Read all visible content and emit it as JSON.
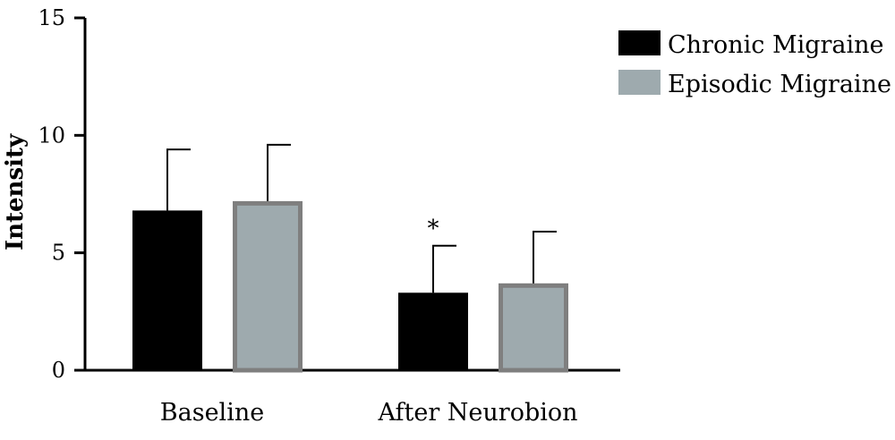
{
  "chart_data": {
    "type": "bar",
    "title": "",
    "xlabel": "",
    "ylabel": "Intensity",
    "ylim": [
      0,
      15
    ],
    "yticks": [
      0,
      5,
      10,
      15
    ],
    "categories": [
      "Baseline",
      "After Neurobion"
    ],
    "series": [
      {
        "name": "Chronic Migraine",
        "color": "#000000",
        "values": [
          6.8,
          3.3
        ],
        "error_upper": [
          2.6,
          2.0
        ]
      },
      {
        "name": "Episodic Migraine",
        "color": "#9eaaae",
        "edge_color": "#7f7f7f",
        "values": [
          7.2,
          3.7
        ],
        "error_upper": [
          2.4,
          2.2
        ]
      }
    ],
    "annotations": [
      {
        "category": "After Neurobion",
        "series": "Chronic Migraine",
        "text": "*"
      }
    ],
    "legend_position": "top-right",
    "grid": false
  }
}
